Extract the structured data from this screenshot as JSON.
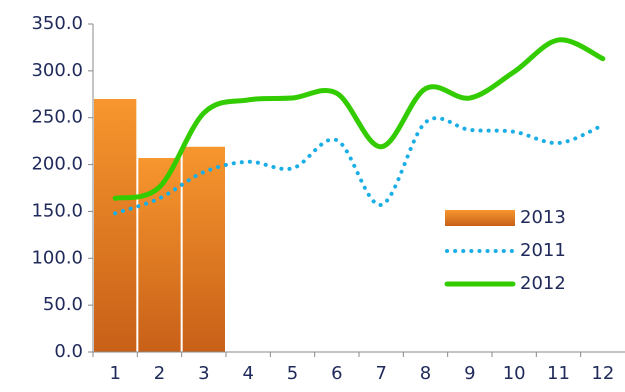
{
  "chart_data": {
    "type": "bar-line",
    "categories": [
      "1",
      "2",
      "3",
      "4",
      "5",
      "6",
      "7",
      "8",
      "9",
      "10",
      "11",
      "12"
    ],
    "series": [
      {
        "name": "2013",
        "type": "bar",
        "color": "#f08a24",
        "values": [
          270,
          207,
          219,
          null,
          null,
          null,
          null,
          null,
          null,
          null,
          null,
          null
        ]
      },
      {
        "name": "2011",
        "type": "line",
        "style": "dotted",
        "color": "#1aaee6",
        "values": [
          148,
          164,
          192,
          203,
          196,
          226,
          157,
          245,
          237,
          235,
          223,
          242
        ]
      },
      {
        "name": "2012",
        "type": "line",
        "style": "solid",
        "color": "#33cc00",
        "values": [
          164,
          176,
          255,
          269,
          271,
          276,
          219,
          281,
          271,
          299,
          333,
          313
        ]
      }
    ],
    "ylim": [
      0,
      350
    ],
    "yticks": [
      {
        "value": 0,
        "label": "0.0"
      },
      {
        "value": 50,
        "label": "50.0"
      },
      {
        "value": 100,
        "label": "100.0"
      },
      {
        "value": 150,
        "label": "150.0"
      },
      {
        "value": 200,
        "label": "200.0"
      },
      {
        "value": 250,
        "label": "250.0"
      },
      {
        "value": 300,
        "label": "300.0"
      },
      {
        "value": 350,
        "label": "350.0"
      }
    ],
    "grid": false
  }
}
